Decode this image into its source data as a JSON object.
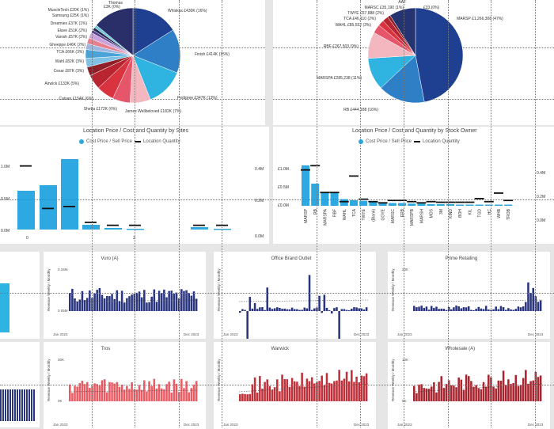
{
  "pie_left": {
    "labels": [
      "Thomas",
      "MuscleTech £20K (1%)",
      "Samsung £25K (1%)",
      "Dreamies £37K (1%)",
      "Elave £51K (2%)",
      "Vanish £57K (2%)",
      "Gheeppe £46K (2%)",
      "TCA £66K (3%)",
      "Wahl £82K (3%)",
      "Cesar £87K (3%)",
      "Airwick £133K (5%)",
      "Catsan £154K (6%)",
      "Sheba £172K (6%)",
      "James Wellbeloved £182K (7%)",
      "Pedigree £347K (13%)",
      "Finish £414K (15%)",
      "Whiskas £430K (16%)",
      "£3K (0%)"
    ],
    "slices": [
      {
        "name": "Whiskas",
        "value": 16,
        "color": "#1f3f91"
      },
      {
        "name": "Finish",
        "value": 15,
        "color": "#2f7fc7"
      },
      {
        "name": "Pedigree",
        "value": 13,
        "color": "#2fb3e0"
      },
      {
        "name": "James Wellbeloved",
        "value": 7,
        "color": "#f4b7c0"
      },
      {
        "name": "Sheba",
        "value": 6,
        "color": "#e5566a"
      },
      {
        "name": "Catsan",
        "value": 6,
        "color": "#d9333f"
      },
      {
        "name": "Airwick",
        "value": 5,
        "color": "#b82430"
      },
      {
        "name": "Cesar",
        "value": 3,
        "color": "#8f1f26"
      },
      {
        "name": "Wahl",
        "value": 3,
        "color": "#7ec2e6"
      },
      {
        "name": "TCA",
        "value": 3,
        "color": "#4aa3d6"
      },
      {
        "name": "Gheeppe",
        "value": 2,
        "color": "#9bb7e0"
      },
      {
        "name": "Vanish",
        "value": 2,
        "color": "#e77f8d"
      },
      {
        "name": "Elave",
        "value": 2,
        "color": "#c9a3d9"
      },
      {
        "name": "Dreamies",
        "value": 1,
        "color": "#59458f"
      },
      {
        "name": "Samsung",
        "value": 1,
        "color": "#2a2a55"
      },
      {
        "name": "MuscleTech",
        "value": 1,
        "color": "#6fcbd6"
      },
      {
        "name": "Other",
        "value": 14,
        "color": "#2a2f6a"
      }
    ]
  },
  "pie_right": {
    "labels": [
      "AAF",
      "MARSC £35,190 (1%)",
      "£33,(0%)",
      "TWYE £57,888 (2%)",
      "TCA £46,110 (2%)",
      "WAHL £85,552 (3%)",
      "RBF £267,503 (9%)",
      "MARSPA £285,238 (11%)",
      "RB £444,188 (16%)",
      "MARSP £1,266,308 (47%)"
    ],
    "slices": [
      {
        "name": "MARSP",
        "value": 47,
        "color": "#1f3f91"
      },
      {
        "name": "RB",
        "value": 16,
        "color": "#2f7fc7"
      },
      {
        "name": "MARSPA",
        "value": 11,
        "color": "#2fb3e0"
      },
      {
        "name": "RBF",
        "value": 9,
        "color": "#f4b7c0"
      },
      {
        "name": "WAHL",
        "value": 3,
        "color": "#e5566a"
      },
      {
        "name": "TCA",
        "value": 2,
        "color": "#d9333f"
      },
      {
        "name": "TWYE",
        "value": 2,
        "color": "#b82430"
      },
      {
        "name": "MARSC",
        "value": 1,
        "color": "#8f1f26"
      },
      {
        "name": "Other",
        "value": 9,
        "color": "#253470"
      }
    ]
  },
  "loc_sites": {
    "title": "Location Price / Cost and Quantity by Sites",
    "legend_a": "Cost Price / Sell Price",
    "legend_b": "Location Quantity",
    "y_left": [
      "1.0M",
      "0.5M",
      "0.0M"
    ],
    "y_right": [
      "0.4M",
      "0.2M",
      "0.0M"
    ],
    "x_labels": [
      "0",
      "3"
    ],
    "bars": [
      0.49,
      0.56,
      0.89,
      0.06,
      0.02,
      0.01,
      0.0,
      0.0,
      0.03,
      0.01
    ],
    "marks": [
      0.65,
      0.22,
      0.24,
      0.08,
      0.05,
      0.05,
      0.0,
      0.0,
      0.05,
      0.05
    ]
  },
  "loc_owner": {
    "title": "Location Price / Cost and Quantity by Stock Owner",
    "legend_a": "Cost Price / Sell Price",
    "legend_b": "Location Quantity",
    "y_left": [
      "£1.0M",
      "£0.5M",
      "£0.0M"
    ],
    "y_right": [
      "0.4M",
      "0.2M",
      "0.0M"
    ],
    "categories": [
      "MARSP",
      "RB",
      "MARSPA",
      "RBF",
      "WAHL",
      "TCA",
      "TWYE",
      "(Blank)",
      "GOYE",
      "MARSC",
      "ERB",
      "MARSPB",
      "MARSH",
      "MOS",
      "3M",
      "KIND",
      "BOH",
      "KIL",
      "TGD",
      "HC",
      "WHB",
      "TROB"
    ],
    "bars": [
      0.73,
      0.4,
      0.25,
      0.24,
      0.12,
      0.1,
      0.09,
      0.08,
      0.06,
      0.05,
      0.05,
      0.04,
      0.04,
      0.03,
      0.03,
      0.03,
      0.02,
      0.02,
      0.02,
      0.02,
      0.01,
      0.01
    ],
    "marks": [
      0.6,
      0.67,
      0.23,
      0.23,
      0.08,
      0.5,
      0.12,
      0.08,
      0.06,
      0.1,
      0.1,
      0.08,
      0.06,
      0.08,
      0.07,
      0.07,
      0.07,
      0.07,
      0.13,
      0.08,
      0.22,
      0.1
    ]
  },
  "small_charts": [
    {
      "title": "Vuro (A)",
      "ylabel": "Revenue Weekly / Monthly",
      "start": "Jan 2023",
      "end": "Dec 2023",
      "y_top": "0.15M",
      "y_mid": "0.05M",
      "color": "#2a3580",
      "seed": 11
    },
    {
      "title": "Office Brand Outlet",
      "ylabel": "Revenue Weekly / Monthly",
      "start": "Jan 2023",
      "end": "Dec 2023",
      "y_top": "",
      "y_mid": "",
      "color": "#2a3580",
      "seed": 27
    },
    {
      "title": "Prime Retailing",
      "ylabel": "Revenue Weekly / Monthly",
      "start": "Jan 2023",
      "end": "Dec 2023",
      "y_top": "20K",
      "y_mid": "",
      "color": "#2a3580",
      "seed": 43
    },
    {
      "title": "Tros",
      "ylabel": "Revenue Weekly / Monthly",
      "start": "Jan 2023",
      "end": "Dec 2023",
      "y_top": "30K",
      "y_mid": "0K",
      "color": "#ea5b63",
      "seed": 59
    },
    {
      "title": "Warwick",
      "ylabel": "Revenue Weekly / Monthly",
      "start": "Jan 2023",
      "end": "Dec 2023",
      "y_top": "",
      "y_mid": "",
      "color": "#c0303a",
      "seed": 71
    },
    {
      "title": "Wholesale (A)",
      "ylabel": "Revenue Weekly / Monthly",
      "start": "Jan 2023",
      "end": "Dec 2023",
      "y_top": "10K",
      "y_mid": "5K",
      "color": "#a8242e",
      "seed": 83
    }
  ]
}
